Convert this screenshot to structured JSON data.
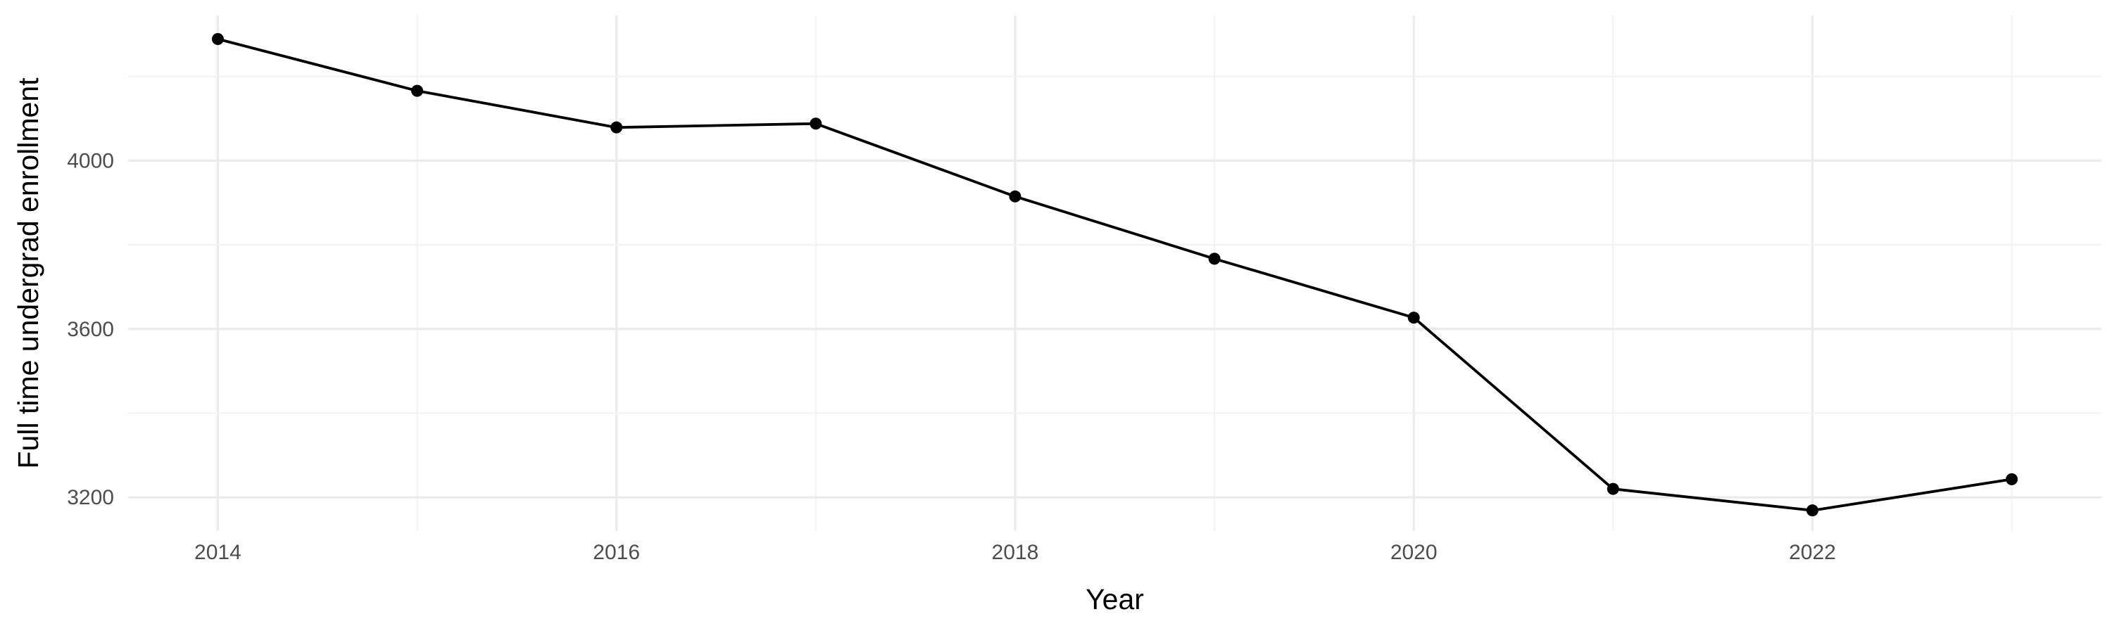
{
  "chart_data": {
    "type": "line",
    "title": "",
    "xlabel": "Year",
    "ylabel": "Full time undergrad enrollment",
    "x": [
      2014,
      2015,
      2016,
      2017,
      2018,
      2019,
      2020,
      2021,
      2022,
      2023
    ],
    "series": [
      {
        "values": [
          4289,
          4166,
          4079,
          4088,
          3915,
          3767,
          3627,
          3220,
          3169,
          3243
        ]
      }
    ],
    "xlim": [
      2013.55,
      2023.45
    ],
    "ylim": [
      3120,
      4345
    ],
    "x_ticks": [
      2014,
      2016,
      2018,
      2020,
      2022
    ],
    "x_tick_labels": [
      "2014",
      "2016",
      "2018",
      "2020",
      "2022"
    ],
    "y_ticks": [
      3200,
      3600,
      4000
    ],
    "y_tick_labels": [
      "3200",
      "3600",
      "4000"
    ],
    "grid": true,
    "legend": "none",
    "colors": {
      "line": "#000000",
      "point": "#000000",
      "grid": "#ebebeb",
      "tick_text": "#4d4d4d"
    }
  }
}
